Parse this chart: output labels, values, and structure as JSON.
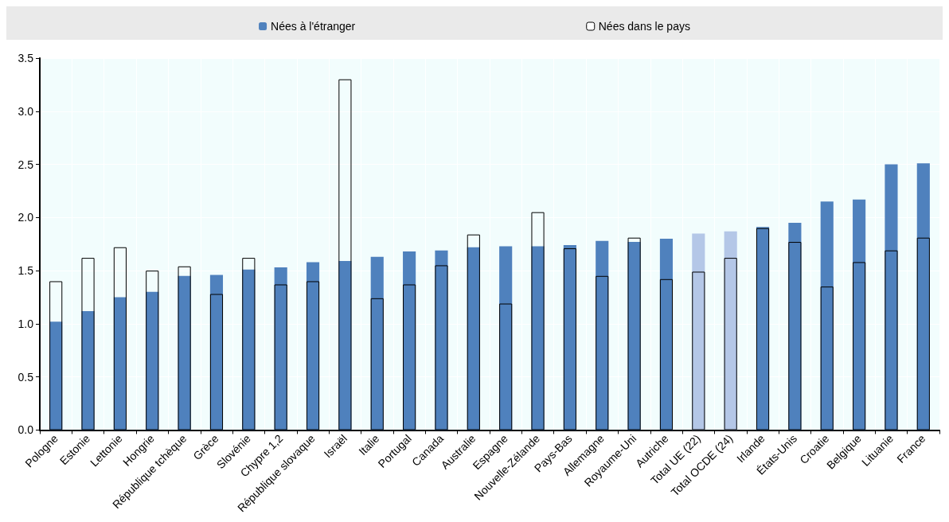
{
  "chart_data": {
    "type": "bar",
    "categories": [
      "Pologne",
      "Estonie",
      "Lettonie",
      "Hongrie",
      "République tchèque",
      "Grèce",
      "Slovénie",
      "Chypre 1,2",
      "République slovaque",
      "Israël",
      "Italie",
      "Portugal",
      "Canada",
      "Australie",
      "Espagne",
      "Nouvelle-Zélande",
      "Pays-Bas",
      "Allemagne",
      "Royaume-Uni",
      "Autriche",
      "Total UE (22)",
      "Total OCDE (24)",
      "Irlande",
      "États-Unis",
      "Croatie",
      "Belgique",
      "Lituanie",
      "France"
    ],
    "series": [
      {
        "name": "Nées à l'étranger",
        "color": "#4f81bd",
        "colors": [
          "#4f81bd",
          "#4f81bd",
          "#4f81bd",
          "#4f81bd",
          "#4f81bd",
          "#4f81bd",
          "#4f81bd",
          "#4f81bd",
          "#4f81bd",
          "#4f81bd",
          "#4f81bd",
          "#4f81bd",
          "#4f81bd",
          "#4f81bd",
          "#4f81bd",
          "#4f81bd",
          "#4f81bd",
          "#4f81bd",
          "#4f81bd",
          "#4f81bd",
          "#b4c7e7",
          "#b4c7e7",
          "#4f81bd",
          "#4f81bd",
          "#4f81bd",
          "#4f81bd",
          "#4f81bd",
          "#4f81bd"
        ],
        "values": [
          1.02,
          1.12,
          1.25,
          1.3,
          1.45,
          1.46,
          1.51,
          1.53,
          1.58,
          1.59,
          1.63,
          1.68,
          1.69,
          1.72,
          1.73,
          1.73,
          1.74,
          1.78,
          1.77,
          1.8,
          1.85,
          1.87,
          1.91,
          1.95,
          2.15,
          2.17,
          2.5,
          2.51
        ]
      },
      {
        "name": "Nées dans le pays",
        "color": "#000000",
        "values": [
          1.4,
          1.62,
          1.72,
          1.5,
          1.54,
          1.28,
          1.62,
          1.37,
          1.4,
          3.3,
          1.24,
          1.37,
          1.55,
          1.84,
          1.19,
          2.05,
          1.71,
          1.45,
          1.81,
          1.42,
          1.49,
          1.62,
          1.9,
          1.77,
          1.35,
          1.58,
          1.69,
          1.81
        ]
      }
    ],
    "ylim": [
      0,
      3.5
    ],
    "yticks": [
      {
        "value": 0,
        "label": "0.0"
      },
      0.5,
      {
        "value": 1,
        "label": "1.0"
      },
      1.5,
      {
        "value": 2,
        "label": "2.0"
      },
      2.5,
      {
        "value": 3,
        "label": "3.0"
      },
      3.5
    ],
    "grid": true,
    "legend": "top"
  }
}
